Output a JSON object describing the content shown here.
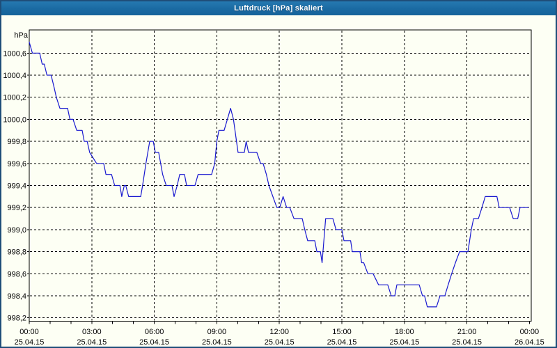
{
  "window": {
    "title": "Luftdruck [hPa] skaliert"
  },
  "colors": {
    "titlebar_bg": "#1c6ea8",
    "titlebar_text": "#ffffff",
    "window_border": "#1f4e79",
    "background": "#fdfff4",
    "line": "#1818cf",
    "grid": "#000000",
    "axis": "#000000",
    "label_text": "#000000"
  },
  "chart_data": {
    "type": "line",
    "title": "Luftdruck [hPa] skaliert",
    "ylabel_unit": "hPa",
    "grid": true,
    "legend": "none",
    "ylim": [
      998.17,
      1000.81
    ],
    "xlim_hours": [
      0,
      24
    ],
    "minor_tick_hours": 1,
    "y_ticks": [
      {
        "value": 1000.6,
        "label": "1000,6"
      },
      {
        "value": 1000.4,
        "label": "1000,4"
      },
      {
        "value": 1000.2,
        "label": "1000,2"
      },
      {
        "value": 1000.0,
        "label": "1000,0"
      },
      {
        "value": 999.8,
        "label": "999,8"
      },
      {
        "value": 999.6,
        "label": "999,6"
      },
      {
        "value": 999.4,
        "label": "999,4"
      },
      {
        "value": 999.2,
        "label": "999,2"
      },
      {
        "value": 999.0,
        "label": "999,0"
      },
      {
        "value": 998.8,
        "label": "998,8"
      },
      {
        "value": 998.6,
        "label": "998,6"
      },
      {
        "value": 998.4,
        "label": "998,4"
      },
      {
        "value": 998.2,
        "label": "998,2"
      }
    ],
    "x_ticks": [
      {
        "hour": 0,
        "time": "00:00",
        "date": "25.04.15"
      },
      {
        "hour": 3,
        "time": "03:00",
        "date": "25.04.15"
      },
      {
        "hour": 6,
        "time": "06:00",
        "date": "25.04.15"
      },
      {
        "hour": 9,
        "time": "09:00",
        "date": "25.04.15"
      },
      {
        "hour": 12,
        "time": "12:00",
        "date": "25.04.15"
      },
      {
        "hour": 15,
        "time": "15:00",
        "date": "25.04.15"
      },
      {
        "hour": 18,
        "time": "18:00",
        "date": "25.04.15"
      },
      {
        "hour": 21,
        "time": "21:00",
        "date": "25.04.15"
      },
      {
        "hour": 24,
        "time": "00:00",
        "date": "26.04.15"
      }
    ],
    "series": [
      {
        "name": "Luftdruck",
        "unit": "hPa",
        "points": [
          [
            0,
            1000.7
          ],
          [
            0.15,
            1000.6
          ],
          [
            0.5,
            1000.6
          ],
          [
            0.62,
            1000.5
          ],
          [
            0.72,
            1000.5
          ],
          [
            0.85,
            1000.4
          ],
          [
            1.05,
            1000.4
          ],
          [
            1.18,
            1000.3
          ],
          [
            1.3,
            1000.2
          ],
          [
            1.47,
            1000.1
          ],
          [
            1.84,
            1000.1
          ],
          [
            1.95,
            1000.0
          ],
          [
            2.1,
            1000.0
          ],
          [
            2.28,
            999.9
          ],
          [
            2.54,
            999.9
          ],
          [
            2.64,
            999.8
          ],
          [
            2.78,
            999.8
          ],
          [
            2.9,
            999.7
          ],
          [
            3.23,
            999.6
          ],
          [
            3.57,
            999.6
          ],
          [
            3.68,
            999.5
          ],
          [
            3.95,
            999.5
          ],
          [
            4.1,
            999.4
          ],
          [
            4.35,
            999.4
          ],
          [
            4.44,
            999.3
          ],
          [
            4.56,
            999.4
          ],
          [
            4.63,
            999.4
          ],
          [
            4.77,
            999.3
          ],
          [
            5.35,
            999.3
          ],
          [
            5.44,
            999.4
          ],
          [
            5.6,
            999.6
          ],
          [
            5.78,
            999.8
          ],
          [
            5.95,
            999.8
          ],
          [
            6.05,
            999.7
          ],
          [
            6.21,
            999.7
          ],
          [
            6.4,
            999.5
          ],
          [
            6.57,
            999.4
          ],
          [
            6.85,
            999.4
          ],
          [
            6.95,
            999.3
          ],
          [
            7.1,
            999.4
          ],
          [
            7.22,
            999.5
          ],
          [
            7.45,
            999.5
          ],
          [
            7.55,
            999.4
          ],
          [
            7.95,
            999.4
          ],
          [
            8.1,
            999.5
          ],
          [
            8.75,
            999.5
          ],
          [
            8.9,
            999.6
          ],
          [
            9.0,
            999.8
          ],
          [
            9.1,
            999.9
          ],
          [
            9.35,
            999.9
          ],
          [
            9.66,
            1000.1
          ],
          [
            9.8,
            1000.0
          ],
          [
            10.02,
            999.7
          ],
          [
            10.32,
            999.7
          ],
          [
            10.41,
            999.8
          ],
          [
            10.52,
            999.7
          ],
          [
            10.92,
            999.7
          ],
          [
            11.1,
            999.6
          ],
          [
            11.22,
            999.6
          ],
          [
            11.38,
            999.5
          ],
          [
            11.5,
            999.4
          ],
          [
            11.88,
            999.2
          ],
          [
            12.02,
            999.2
          ],
          [
            12.18,
            999.3
          ],
          [
            12.35,
            999.2
          ],
          [
            12.5,
            999.2
          ],
          [
            12.7,
            999.1
          ],
          [
            13.1,
            999.1
          ],
          [
            13.22,
            999.0
          ],
          [
            13.36,
            998.9
          ],
          [
            13.7,
            998.9
          ],
          [
            13.8,
            998.8
          ],
          [
            13.97,
            998.8
          ],
          [
            14.05,
            998.7
          ],
          [
            14.22,
            999.1
          ],
          [
            14.57,
            999.1
          ],
          [
            14.72,
            999.0
          ],
          [
            15.0,
            999.0
          ],
          [
            15.1,
            998.9
          ],
          [
            15.42,
            998.9
          ],
          [
            15.5,
            998.8
          ],
          [
            15.87,
            998.8
          ],
          [
            15.95,
            998.7
          ],
          [
            16.05,
            998.7
          ],
          [
            16.25,
            998.6
          ],
          [
            16.5,
            998.6
          ],
          [
            16.76,
            998.5
          ],
          [
            17.2,
            998.5
          ],
          [
            17.37,
            998.4
          ],
          [
            17.54,
            998.4
          ],
          [
            17.64,
            998.5
          ],
          [
            18.71,
            998.5
          ],
          [
            18.87,
            998.4
          ],
          [
            18.97,
            998.4
          ],
          [
            19.1,
            998.3
          ],
          [
            19.54,
            998.3
          ],
          [
            19.71,
            998.4
          ],
          [
            19.94,
            998.4
          ],
          [
            20.1,
            998.5
          ],
          [
            20.27,
            998.6
          ],
          [
            20.45,
            998.7
          ],
          [
            20.65,
            998.8
          ],
          [
            21.05,
            998.8
          ],
          [
            21.21,
            999.0
          ],
          [
            21.32,
            999.1
          ],
          [
            21.55,
            999.1
          ],
          [
            21.72,
            999.2
          ],
          [
            21.88,
            999.3
          ],
          [
            22.44,
            999.3
          ],
          [
            22.55,
            999.2
          ],
          [
            23.05,
            999.2
          ],
          [
            23.22,
            999.1
          ],
          [
            23.44,
            999.1
          ],
          [
            23.55,
            999.2
          ],
          [
            23.94,
            999.2
          ]
        ]
      }
    ]
  }
}
